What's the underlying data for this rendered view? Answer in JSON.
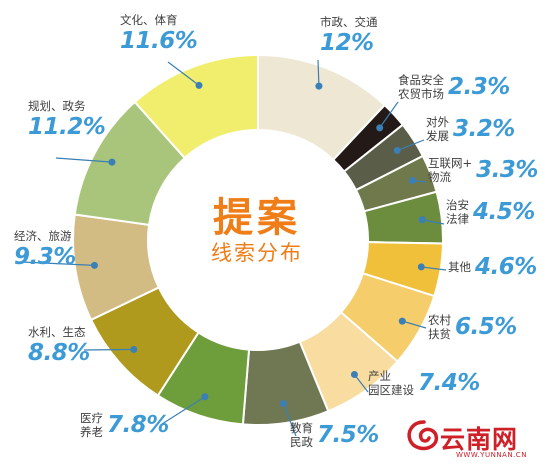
{
  "chart_data": {
    "type": "pie",
    "title": "提案",
    "subtitle": "线索分布",
    "donut": true,
    "slices": [
      {
        "label": "市政、交通",
        "value": 12.0,
        "display": "12%",
        "color": "#ede7d4"
      },
      {
        "label": "食品安全\n农贸市场",
        "value": 2.3,
        "display": "2.3%",
        "color": "#231a17"
      },
      {
        "label": "对外\n发展",
        "value": 3.2,
        "display": "3.2%",
        "color": "#5a5d47"
      },
      {
        "label": "互联网+\n物流",
        "value": 3.3,
        "display": "3.3%",
        "color": "#70794b"
      },
      {
        "label": "治安\n法律",
        "value": 4.5,
        "display": "4.5%",
        "color": "#6c8d3e"
      },
      {
        "label": "其他",
        "value": 4.6,
        "display": "4.6%",
        "color": "#f0c03a"
      },
      {
        "label": "农村\n扶贫",
        "value": 6.5,
        "display": "6.5%",
        "color": "#f5cd6a"
      },
      {
        "label": "产业\n园区建设",
        "value": 7.4,
        "display": "7.4%",
        "color": "#f8dca0"
      },
      {
        "label": "教育\n民政",
        "value": 7.5,
        "display": "7.5%",
        "color": "#6f7852"
      },
      {
        "label": "医疗\n养老",
        "value": 7.8,
        "display": "7.8%",
        "color": "#6e9d3c"
      },
      {
        "label": "水利、生态",
        "value": 8.8,
        "display": "8.8%",
        "color": "#b09a1e"
      },
      {
        "label": "经济、旅游",
        "value": 9.3,
        "display": "9.3%",
        "color": "#d2bc84"
      },
      {
        "label": "规划、政务",
        "value": 11.2,
        "display": "11.2%",
        "color": "#a9c57b"
      },
      {
        "label": "文化、体育",
        "value": 11.6,
        "display": "11.6%",
        "color": "#f1ee6e"
      }
    ]
  },
  "logo": {
    "brand": "云南网",
    "url": "WWW.YUNNAN.CN",
    "color": "#cf2027"
  },
  "colors": {
    "value_text": "#3c9ad6",
    "title_text": "#ef7d18",
    "leader": "#3a7fb5"
  }
}
